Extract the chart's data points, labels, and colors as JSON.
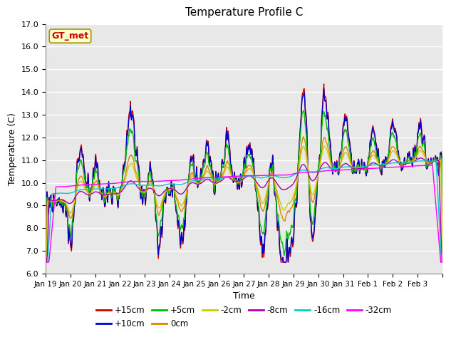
{
  "title": "Temperature Profile C",
  "xlabel": "Time",
  "ylabel": "Temperature (C)",
  "ylim": [
    6.0,
    17.0
  ],
  "yticks": [
    6.0,
    7.0,
    8.0,
    9.0,
    10.0,
    11.0,
    12.0,
    13.0,
    14.0,
    15.0,
    16.0,
    17.0
  ],
  "date_labels": [
    "Jan 19",
    "Jan 20",
    "Jan 21",
    "Jan 22",
    "Jan 23",
    "Jan 24",
    "Jan 25",
    "Jan 26",
    "Jan 27",
    "Jan 28",
    "Jan 29",
    "Jan 30",
    "Jan 31",
    "Feb 1",
    "Feb 2",
    "Feb 3"
  ],
  "series_order": [
    "+15cm",
    "+10cm",
    "+5cm",
    "0cm",
    "-2cm",
    "-8cm",
    "-16cm",
    "-32cm"
  ],
  "series": {
    "+15cm": {
      "color": "#cc0000"
    },
    "+10cm": {
      "color": "#0000cc"
    },
    "+5cm": {
      "color": "#00bb00"
    },
    "0cm": {
      "color": "#dd8800"
    },
    "-2cm": {
      "color": "#cccc00"
    },
    "-8cm": {
      "color": "#aa00aa"
    },
    "-16cm": {
      "color": "#00cccc"
    },
    "-32cm": {
      "color": "#ff00ff"
    }
  },
  "annotation_text": "GT_met",
  "annotation_bg": "#ffffcc",
  "annotation_border": "#999900",
  "annotation_text_color": "#cc0000",
  "bg_color": "#e8e8e8",
  "grid_color": "#ffffff",
  "legend_row1": [
    "+15cm",
    "+10cm",
    "+5cm",
    "0cm",
    "-2cm",
    "-8cm"
  ],
  "legend_row2": [
    "-16cm",
    "-32cm"
  ]
}
